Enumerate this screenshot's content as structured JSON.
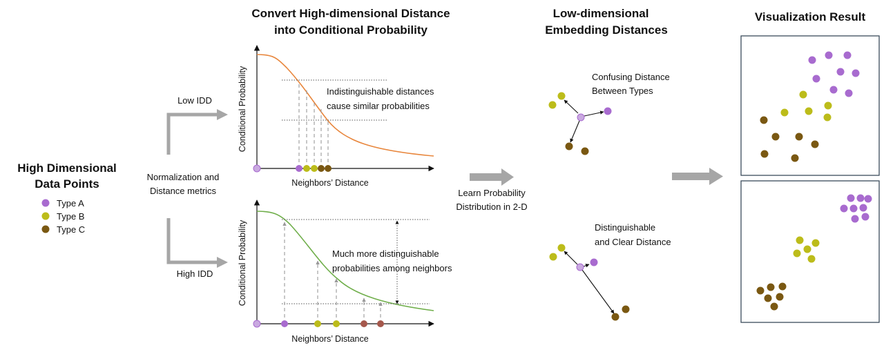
{
  "colors": {
    "type_a": "#a86bcf",
    "type_b": "#bcbc1a",
    "type_c": "#7a5812",
    "far_neighbor": "#a5584c",
    "low_curve": "#e8863c",
    "high_curve": "#6fae4a",
    "arrow_gray": "#a6a6a6",
    "frame": "#3a4a5a"
  },
  "left": {
    "title_line1": "High Dimensional",
    "title_line2": "Data Points",
    "legend": [
      {
        "label": "Type A",
        "color": "#a86bcf"
      },
      {
        "label": "Type B",
        "color": "#bcbc1a"
      },
      {
        "label": "Type C",
        "color": "#7a5812"
      }
    ],
    "norm_line1": "Normalization and",
    "norm_line2": "Distance metrics",
    "low_idd": "Low IDD",
    "high_idd": "High IDD"
  },
  "middle": {
    "title_line1": "Convert High-dimensional Distance",
    "title_line2": "into Conditional Probability",
    "ylabel": "Conditional Probability",
    "xlabel": "Neighbors’ Distance",
    "low_note_line1": "Indistinguishable distances",
    "low_note_line2": "cause similar probabilities",
    "high_note_line1": "Much more distinguishable",
    "high_note_line2": "probabilities among neighbors"
  },
  "learn": {
    "line1": "Learn Probability",
    "line2": "Distribution in 2-D"
  },
  "embedding": {
    "title_line1": "Low-dimensional",
    "title_line2": "Embedding Distances",
    "confusing_line1": "Confusing Distance",
    "confusing_line2": "Between Types",
    "clear_line1": "Distinguishable",
    "clear_line2": "and Clear Distance"
  },
  "result": {
    "title": "Visualization Result"
  }
}
